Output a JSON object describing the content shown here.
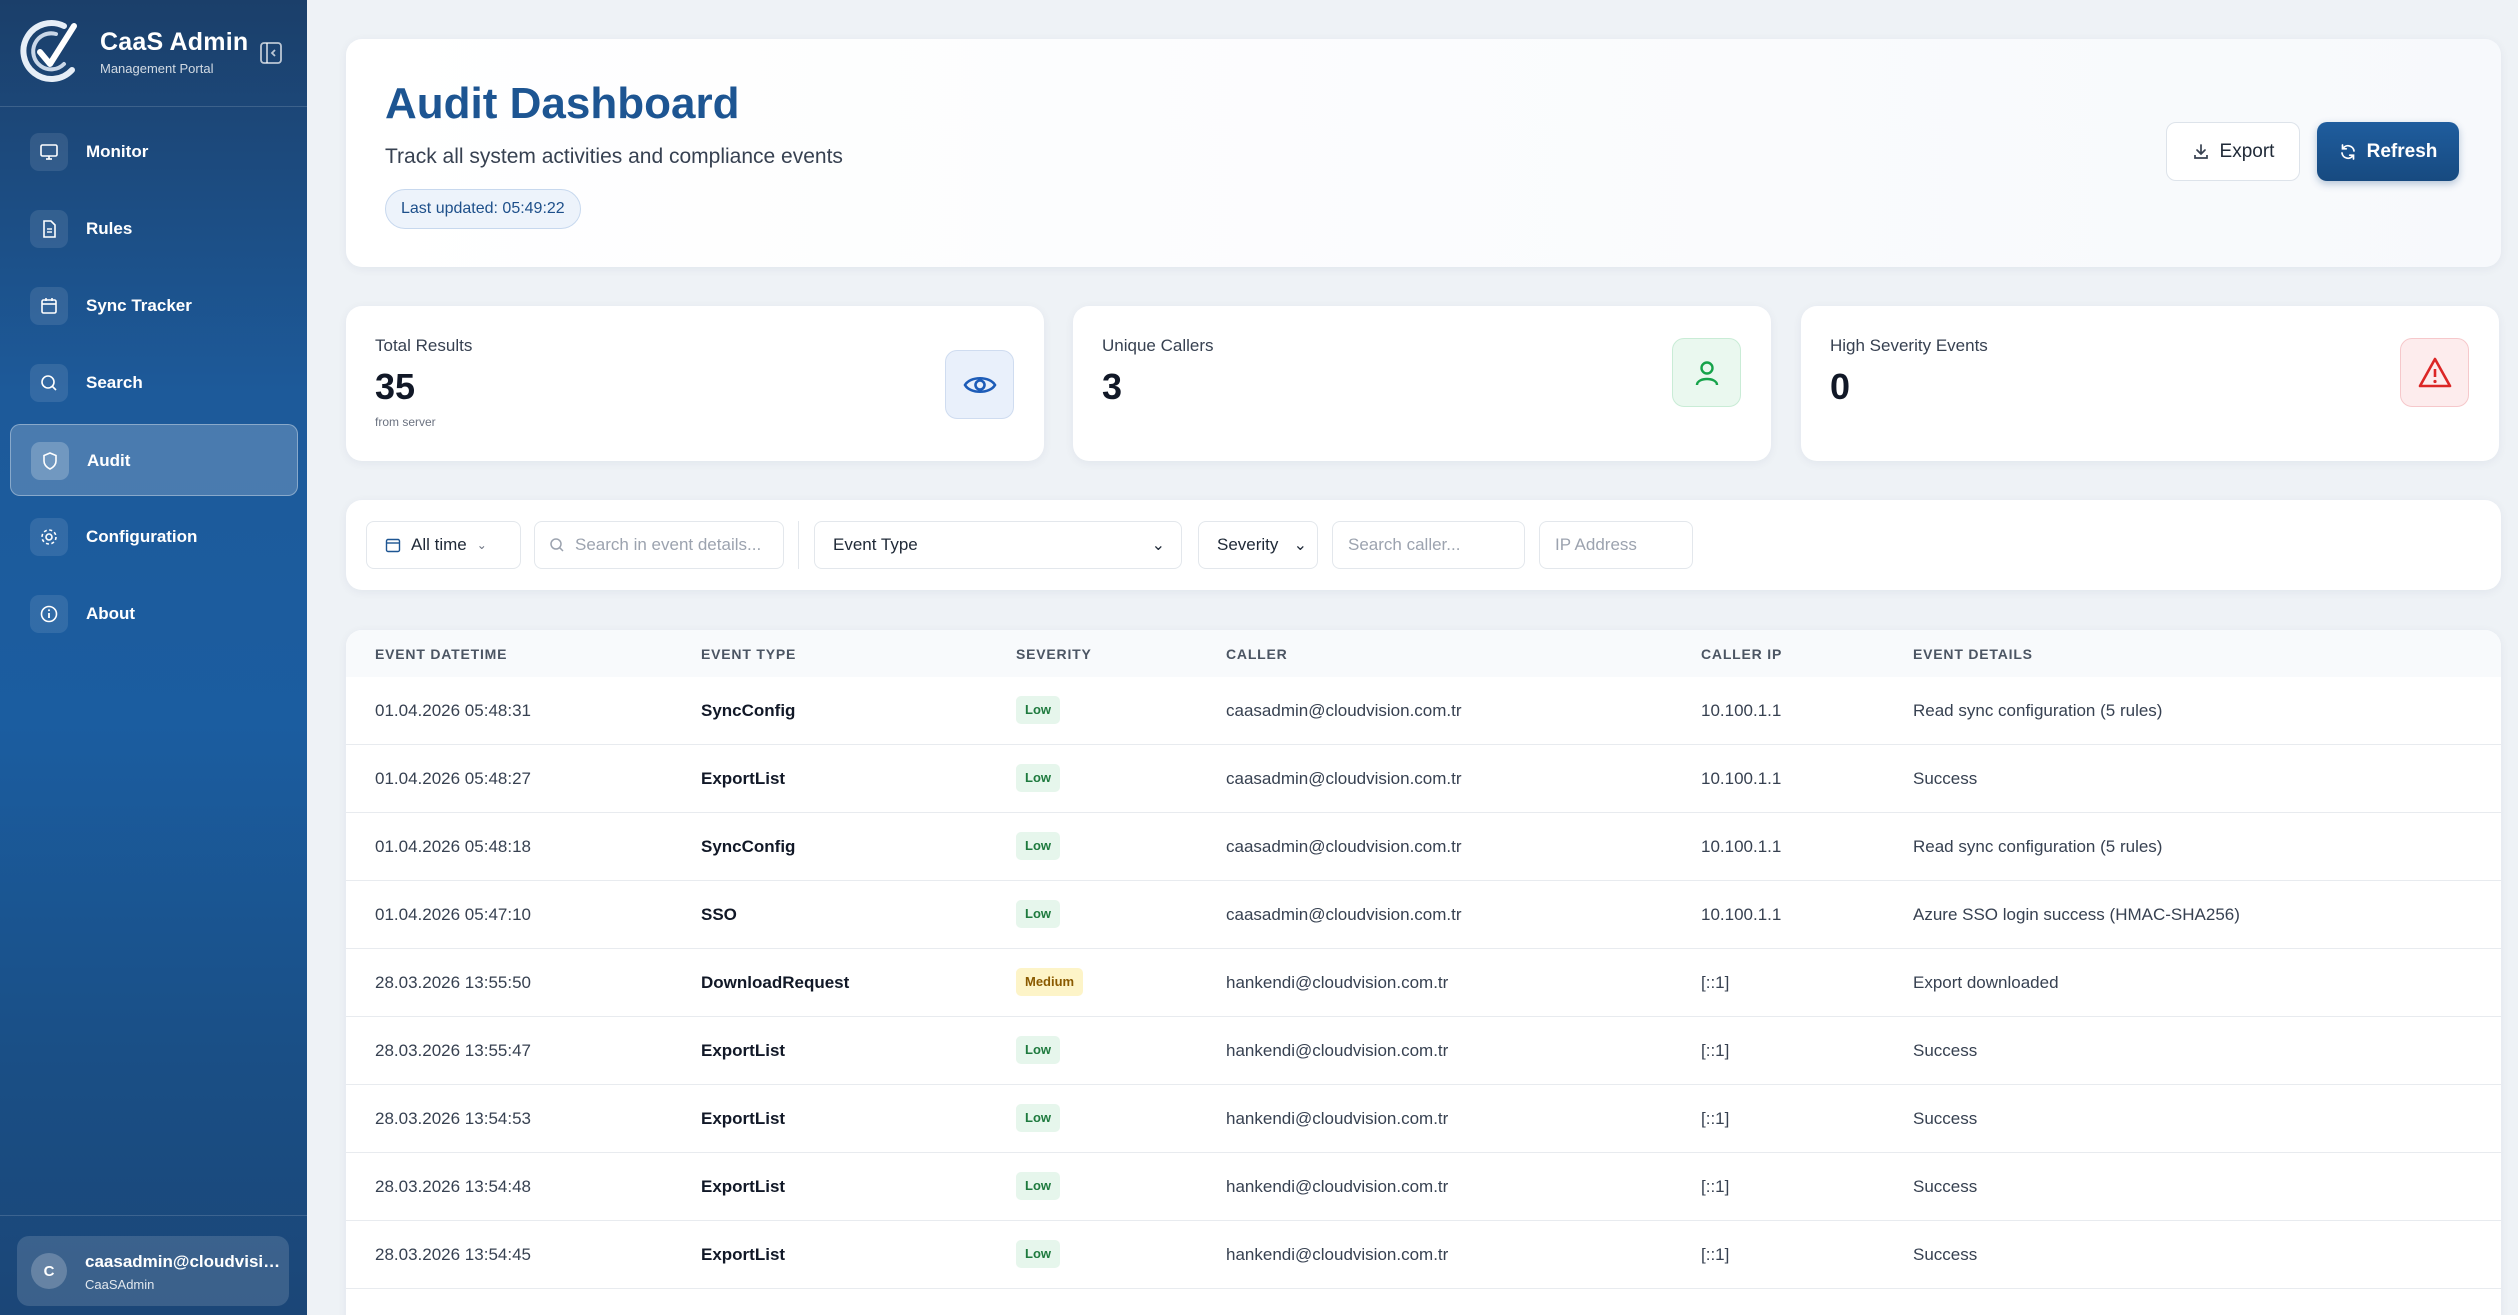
{
  "app": {
    "title": "CaaS Admin",
    "subtitle": "Management Portal"
  },
  "sidebar": {
    "items": [
      {
        "label": "Monitor",
        "icon": "monitor-icon"
      },
      {
        "label": "Rules",
        "icon": "document-icon"
      },
      {
        "label": "Sync Tracker",
        "icon": "calendar-icon"
      },
      {
        "label": "Search",
        "icon": "search-icon"
      },
      {
        "label": "Audit",
        "icon": "shield-icon",
        "active": true
      },
      {
        "label": "Configuration",
        "icon": "gear-icon"
      },
      {
        "label": "About",
        "icon": "info-icon"
      }
    ],
    "user": {
      "initial": "C",
      "name": "caasadmin@cloudvision.com.tr",
      "role": "CaaSAdmin"
    }
  },
  "header": {
    "title": "Audit Dashboard",
    "subtitle": "Track all system activities and compliance events",
    "last_updated": "Last updated: 05:49:22",
    "export_label": "Export",
    "refresh_label": "Refresh"
  },
  "stats": {
    "total": {
      "label": "Total Results",
      "value": "35",
      "note": "from server"
    },
    "callers": {
      "label": "Unique Callers",
      "value": "3"
    },
    "severity": {
      "label": "High Severity Events",
      "value": "0"
    }
  },
  "filters": {
    "time": "All time",
    "search_placeholder": "Search in event details...",
    "event_type": "Event Type",
    "severity": "Severity",
    "caller_placeholder": "Search caller...",
    "ip_placeholder": "IP Address"
  },
  "table": {
    "columns": [
      "EVENT DATETIME",
      "EVENT TYPE",
      "SEVERITY",
      "CALLER",
      "CALLER IP",
      "EVENT DETAILS"
    ],
    "rows": [
      [
        "01.04.2026 05:48:31",
        "SyncConfig",
        "Low",
        "caasadmin@cloudvision.com.tr",
        "10.100.1.1",
        "Read sync configuration (5 rules)"
      ],
      [
        "01.04.2026 05:48:27",
        "ExportList",
        "Low",
        "caasadmin@cloudvision.com.tr",
        "10.100.1.1",
        "Success"
      ],
      [
        "01.04.2026 05:48:18",
        "SyncConfig",
        "Low",
        "caasadmin@cloudvision.com.tr",
        "10.100.1.1",
        "Read sync configuration (5 rules)"
      ],
      [
        "01.04.2026 05:47:10",
        "SSO",
        "Low",
        "caasadmin@cloudvision.com.tr",
        "10.100.1.1",
        "Azure SSO login success (HMAC-SHA256)"
      ],
      [
        "28.03.2026 13:55:50",
        "DownloadRequest",
        "Medium",
        "hankendi@cloudvision.com.tr",
        "[::1]",
        "Export downloaded"
      ],
      [
        "28.03.2026 13:55:47",
        "ExportList",
        "Low",
        "hankendi@cloudvision.com.tr",
        "[::1]",
        "Success"
      ],
      [
        "28.03.2026 13:54:53",
        "ExportList",
        "Low",
        "hankendi@cloudvision.com.tr",
        "[::1]",
        "Success"
      ],
      [
        "28.03.2026 13:54:48",
        "ExportList",
        "Low",
        "hankendi@cloudvision.com.tr",
        "[::1]",
        "Success"
      ],
      [
        "28.03.2026 13:54:45",
        "ExportList",
        "Low",
        "hankendi@cloudvision.com.tr",
        "[::1]",
        "Success"
      ]
    ]
  },
  "colors": {
    "brand": "#1d5592",
    "accent": "#174a80",
    "low": "#1e7a3e",
    "medium": "#8a5a00",
    "danger": "#dc2626",
    "success": "#16a34a"
  }
}
